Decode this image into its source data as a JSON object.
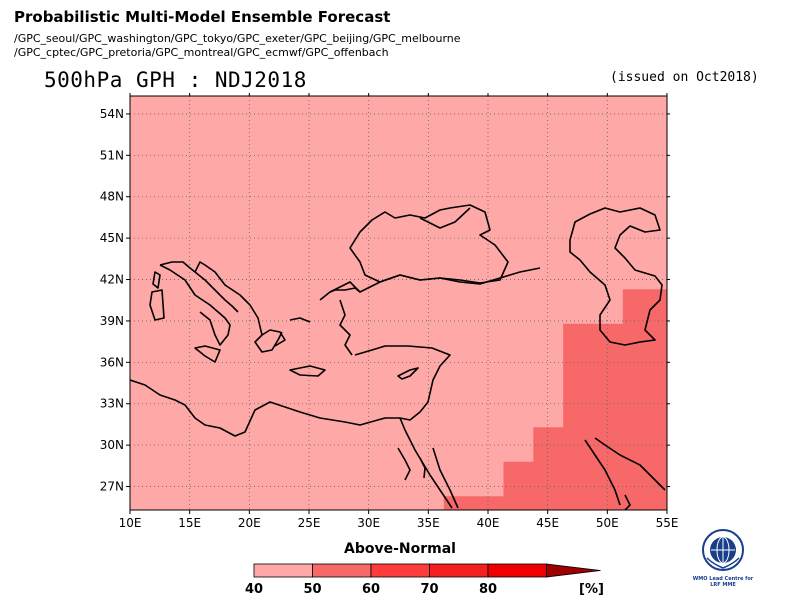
{
  "header": {
    "title": "Probabilistic Multi-Model Ensemble Forecast",
    "centers_line1": "/GPC_seoul/GPC_washington/GPC_tokyo/GPC_exeter/GPC_beijing/GPC_melbourne",
    "centers_line2": "/GPC_cptec/GPC_pretoria/GPC_montreal/GPC_ecmwf/GPC_offenbach",
    "main_title": "500hPa GPH : NDJ2018",
    "issued": "(issued on Oct2018)"
  },
  "map": {
    "lon_ticks": [
      "10E",
      "15E",
      "20E",
      "25E",
      "30E",
      "35E",
      "40E",
      "45E",
      "50E",
      "55E"
    ],
    "lat_ticks": [
      "27N",
      "30N",
      "33N",
      "36N",
      "39N",
      "42N",
      "45N",
      "48N",
      "51N",
      "54N"
    ],
    "lon_range": [
      10,
      55
    ],
    "lat_range": [
      25.3,
      55.3
    ],
    "category": "Above-Normal",
    "base_class": "40",
    "regions": [
      {
        "name": "50-60 region",
        "class": "50",
        "polygon": [
          [
            36.3,
            25.3
          ],
          [
            36.3,
            26.3
          ],
          [
            41.3,
            26.3
          ],
          [
            41.3,
            28.8
          ],
          [
            43.8,
            28.8
          ],
          [
            43.8,
            31.3
          ],
          [
            46.3,
            31.3
          ],
          [
            46.3,
            38.8
          ],
          [
            51.3,
            38.8
          ],
          [
            51.3,
            41.3
          ],
          [
            55,
            41.3
          ],
          [
            55,
            25.3
          ]
        ]
      }
    ],
    "colors": {
      "40": "#ffa8a8",
      "50": "#f76868"
    }
  },
  "colorbar": {
    "label": "Above-Normal",
    "ticks": [
      "40",
      "50",
      "60",
      "70",
      "80"
    ],
    "unit": "[%]",
    "colors": [
      "#ffa8a8",
      "#f76868",
      "#ff3c3c",
      "#f51f1f",
      "#ee0000"
    ],
    "arrow_color": "#9c0000"
  },
  "logo": {
    "line1": "WMO Lead Centre for",
    "line2": "LRF MME",
    "icon": "wmo-logo-icon"
  }
}
